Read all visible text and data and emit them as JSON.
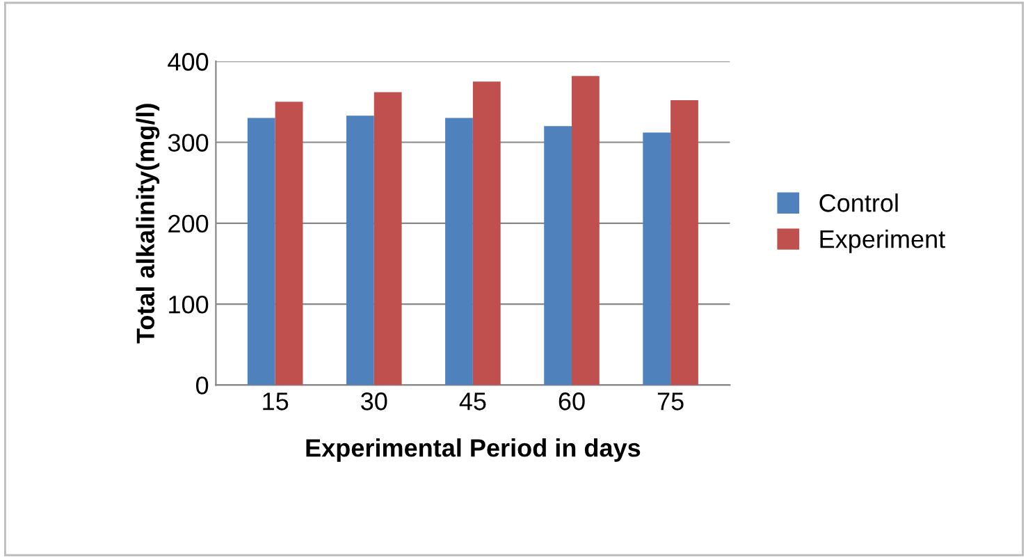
{
  "chart_data": {
    "type": "bar",
    "xlabel": "Experimental Period in days",
    "ylabel": "Total alkalinity(mg/l)",
    "categories": [
      "15",
      "30",
      "45",
      "60",
      "75"
    ],
    "series": [
      {
        "name": "Control",
        "color": "#4f81bd",
        "values": [
          330,
          333,
          330,
          320,
          312
        ]
      },
      {
        "name": "Experiment",
        "color": "#c0504d",
        "values": [
          350,
          362,
          375,
          382,
          352
        ]
      }
    ],
    "ylim": [
      0,
      400
    ],
    "yticks": [
      0,
      100,
      200,
      300,
      400
    ],
    "grid": "y",
    "legend": "right"
  }
}
